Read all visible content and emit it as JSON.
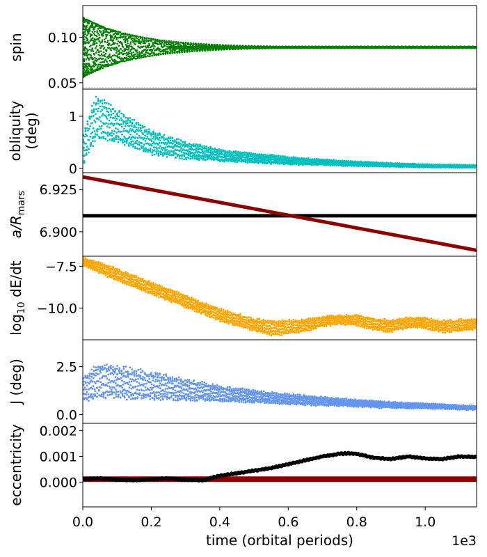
{
  "figure": {
    "xlabel": "time (orbital periods)",
    "x_offset_label": "1e3",
    "xlim": [
      0,
      1.15
    ],
    "x_ticks": [
      0.0,
      0.2,
      0.4,
      0.6,
      0.8,
      1.0
    ],
    "x_tick_labels": [
      "0.0",
      "0.2",
      "0.4",
      "0.6",
      "0.8",
      "1.0"
    ]
  },
  "chart_data": [
    {
      "type": "scatter",
      "panel": "spin",
      "ylabel": "spin",
      "ylim": [
        0.043,
        0.135
      ],
      "y_ticks": [
        0.05,
        0.1
      ],
      "y_tick_labels": [
        "0.05",
        "0.10"
      ],
      "color": "#008000",
      "envelope": {
        "center": 0.089,
        "start_halfwidth": 0.033,
        "decay": 0.16,
        "floor": 0.001
      },
      "reference_lines": [
        {
          "value": 0.089,
          "color": "#bf5fbf",
          "style": "solid",
          "x_end": 0.01
        },
        {
          "value": 0.0445,
          "color": "#e0a0e0",
          "style": "dotted"
        },
        {
          "value": 0.135,
          "color": "#e0a0e0",
          "style": "dotted"
        }
      ]
    },
    {
      "type": "scatter",
      "panel": "obliquity",
      "ylabel": "obliquity\n(deg)",
      "ylim": [
        -0.08,
        1.52
      ],
      "y_ticks": [
        0,
        1
      ],
      "y_tick_labels": [
        "0",
        "1"
      ],
      "color": "#00bfbf",
      "series": {
        "x": [
          0.0,
          0.02,
          0.04,
          0.06,
          0.1,
          0.15,
          0.2,
          0.3,
          0.4,
          0.5,
          0.6,
          0.7,
          0.8,
          0.9,
          1.0,
          1.15
        ],
        "y": [
          0.35,
          0.7,
          0.95,
          0.95,
          0.8,
          0.65,
          0.5,
          0.35,
          0.25,
          0.2,
          0.15,
          0.12,
          0.09,
          0.07,
          0.05,
          0.04
        ],
        "spread": [
          0.3,
          0.45,
          0.45,
          0.4,
          0.35,
          0.3,
          0.25,
          0.18,
          0.12,
          0.1,
          0.08,
          0.06,
          0.05,
          0.04,
          0.035,
          0.03
        ]
      }
    },
    {
      "type": "line",
      "panel": "semi_major_axis",
      "ylabel": "a/R",
      "ylabel_subscript": "mars",
      "ylim": [
        6.8855,
        6.935
      ],
      "y_ticks": [
        6.9,
        6.925
      ],
      "y_tick_labels": [
        "6.900",
        "6.925"
      ],
      "series": [
        {
          "name": "a",
          "x": [
            0,
            1.15
          ],
          "y": [
            6.9325,
            6.889
          ],
          "color": "#8b0000"
        },
        {
          "name": "reference",
          "x": [
            0,
            1.15
          ],
          "y": [
            6.9095,
            6.9095
          ],
          "color": "#000000"
        }
      ]
    },
    {
      "type": "scatter",
      "panel": "energy_dissipation",
      "ylabel": "log",
      "ylabel_subscript": "10",
      "ylabel_suffix": " dE/dt",
      "ylim": [
        -11.9,
        -6.9
      ],
      "y_ticks": [
        -10.0,
        -7.5
      ],
      "y_tick_labels": [
        "−10.0",
        "−7.5"
      ],
      "color": "#ffa500",
      "series": {
        "x": [
          0.0,
          0.05,
          0.1,
          0.2,
          0.3,
          0.4,
          0.5,
          0.55,
          0.6,
          0.65,
          0.7,
          0.75,
          0.8,
          0.85,
          0.9,
          0.95,
          1.0,
          1.05,
          1.1,
          1.15
        ],
        "y": [
          -7.2,
          -7.6,
          -8.0,
          -8.8,
          -9.6,
          -10.4,
          -11.0,
          -11.2,
          -11.15,
          -11.05,
          -10.8,
          -10.7,
          -10.75,
          -10.95,
          -11.1,
          -10.85,
          -10.9,
          -11.1,
          -11.05,
          -10.95
        ],
        "spread": [
          0.25,
          0.35,
          0.4,
          0.4,
          0.4,
          0.4,
          0.4,
          0.5,
          0.45,
          0.4,
          0.35,
          0.3,
          0.35,
          0.4,
          0.4,
          0.35,
          0.35,
          0.4,
          0.4,
          0.35
        ]
      }
    },
    {
      "type": "scatter",
      "panel": "inclination",
      "ylabel": "J (deg)",
      "ylim": [
        -0.45,
        3.9
      ],
      "y_ticks": [
        0.0,
        2.5
      ],
      "y_tick_labels": [
        "0.0",
        "2.5"
      ],
      "color": "#6495ed",
      "series": {
        "x": [
          0.0,
          0.03,
          0.05,
          0.1,
          0.2,
          0.3,
          0.4,
          0.5,
          0.6,
          0.7,
          0.8,
          0.9,
          1.0,
          1.15
        ],
        "y": [
          1.3,
          1.6,
          1.8,
          1.7,
          1.5,
          1.3,
          1.1,
          0.95,
          0.8,
          0.7,
          0.6,
          0.5,
          0.45,
          0.35
        ],
        "spread": [
          0.7,
          0.9,
          1.0,
          0.9,
          0.8,
          0.6,
          0.45,
          0.35,
          0.3,
          0.25,
          0.2,
          0.18,
          0.15,
          0.12
        ]
      }
    },
    {
      "type": "line",
      "panel": "eccentricity",
      "ylabel": "eccentricity",
      "ylim": [
        -0.00095,
        0.00228
      ],
      "y_ticks": [
        0.0,
        0.001,
        0.002
      ],
      "y_tick_labels": [
        "0.000",
        "0.001",
        "0.002"
      ],
      "series": [
        {
          "name": "eccentricity",
          "color": "#000000",
          "x": [
            0.0,
            0.05,
            0.1,
            0.15,
            0.2,
            0.25,
            0.3,
            0.35,
            0.4,
            0.45,
            0.5,
            0.55,
            0.6,
            0.65,
            0.7,
            0.75,
            0.78,
            0.8,
            0.85,
            0.9,
            0.95,
            1.0,
            1.05,
            1.1,
            1.15
          ],
          "y": [
            0.00012,
            0.00015,
            0.0001,
            8e-05,
            0.00012,
            0.00015,
            0.0001,
            8e-05,
            0.00025,
            0.00035,
            0.00045,
            0.00055,
            0.0007,
            0.00085,
            0.001,
            0.0011,
            0.00112,
            0.0011,
            0.00095,
            0.0009,
            0.001,
            0.00092,
            0.0009,
            0.001,
            0.00098
          ]
        },
        {
          "name": "reference",
          "color": "#8b0000",
          "x": [
            0.0,
            1.15
          ],
          "y": [
            0.00012,
            0.00012
          ]
        }
      ]
    }
  ]
}
